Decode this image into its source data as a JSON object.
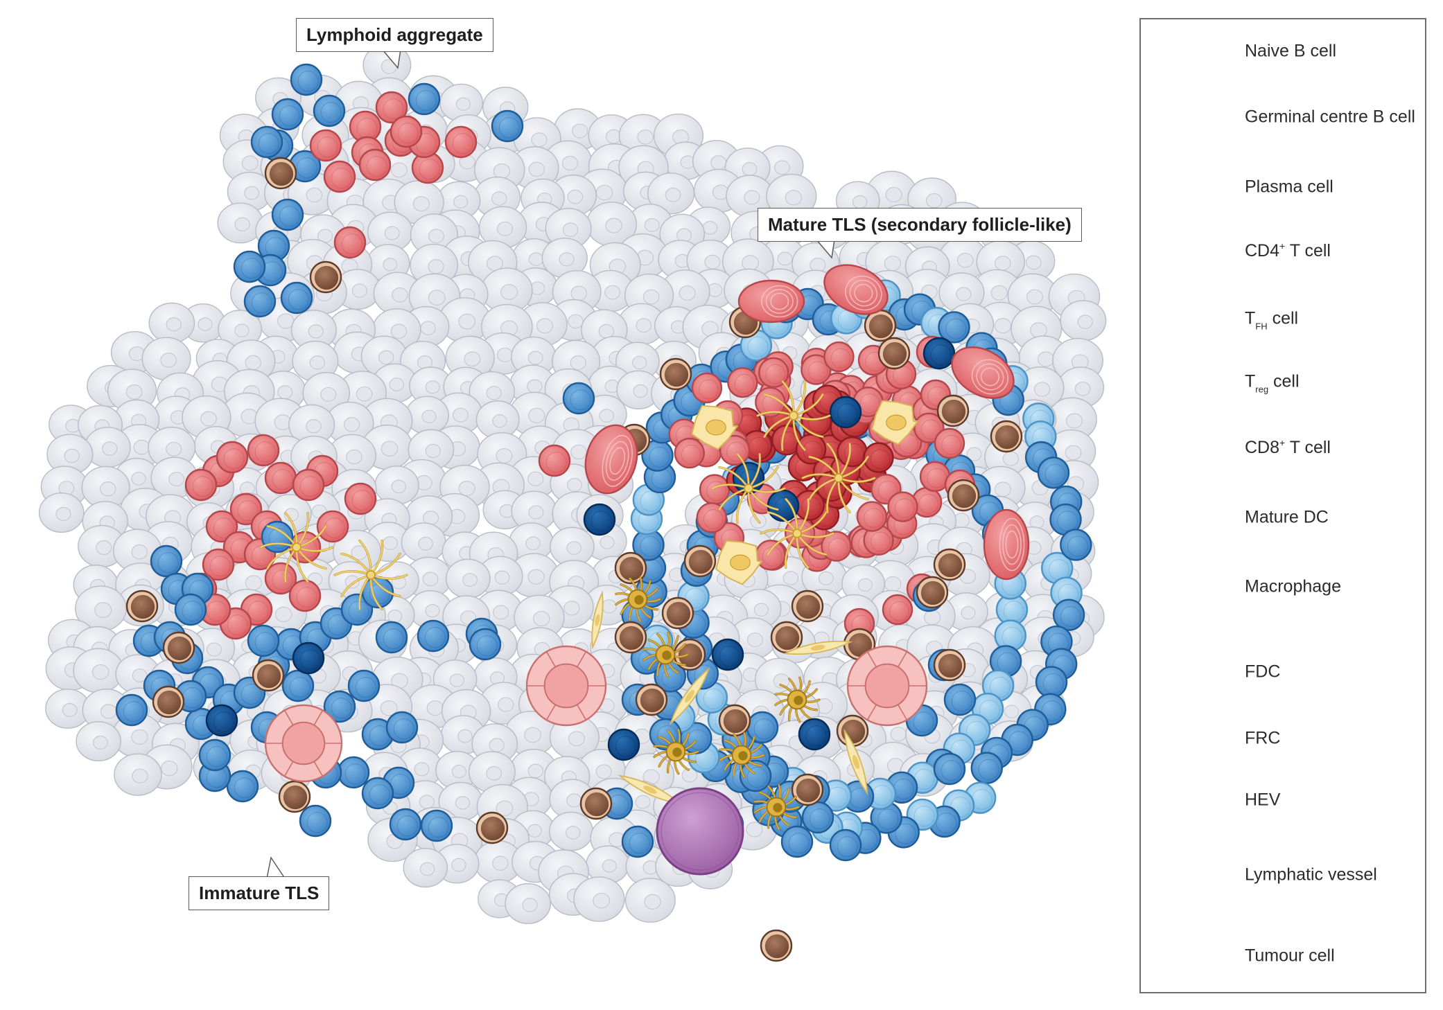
{
  "callouts": {
    "lymphoid_aggregate": "Lymphoid aggregate",
    "mature_tls": "Mature TLS (secondary follicle-like)",
    "immature_tls": "Immature TLS"
  },
  "legend": [
    {
      "key": "naive_b",
      "text": "Naive B cell",
      "icon": "naive-b-cell-icon"
    },
    {
      "key": "gc_b",
      "text": "Germinal centre B cell",
      "icon": "germinal-centre-b-cell-icon"
    },
    {
      "key": "plasma",
      "text": "Plasma cell",
      "icon": "plasma-cell-icon"
    },
    {
      "key": "cd4",
      "text_main": "CD4",
      "text_sup": "+",
      "text_rest": " T cell",
      "icon": "cd4-t-cell-icon"
    },
    {
      "key": "tfh",
      "text_main": "T",
      "text_sub": "FH",
      "text_rest": " cell",
      "icon": "tfh-cell-icon"
    },
    {
      "key": "treg",
      "text_main": "T",
      "text_sub": "reg",
      "text_rest": " cell",
      "icon": "treg-cell-icon"
    },
    {
      "key": "cd8",
      "text_main": "CD8",
      "text_sup": "+",
      "text_rest": " T cell",
      "icon": "cd8-t-cell-icon"
    },
    {
      "key": "mature_dc",
      "text": "Mature DC",
      "icon": "mature-dc-icon"
    },
    {
      "key": "macrophage",
      "text": "Macrophage",
      "icon": "macrophage-icon"
    },
    {
      "key": "fdc",
      "text": "FDC",
      "icon": "fdc-icon"
    },
    {
      "key": "frc",
      "text": "FRC",
      "icon": "frc-icon"
    },
    {
      "key": "hev",
      "text": "HEV",
      "icon": "hev-icon"
    },
    {
      "key": "lymphatic",
      "text": "Lymphatic vessel",
      "icon": "lymphatic-vessel-icon"
    },
    {
      "key": "tumour",
      "text": "Tumour cell",
      "icon": "tumour-cell-icon"
    }
  ],
  "colors": {
    "naive_b": "#e8767a",
    "gc_b": "#cf3a3e",
    "plasma": "#e8767a",
    "cd4": "#4a90cf",
    "tfh": "#8cc6ea",
    "treg": "#0d4f93",
    "cd8": "#8a5a42",
    "dc": "#d9ab35",
    "macrophage": "#f6dc93",
    "fdc": "#e2bd55",
    "frc": "#f2dd98",
    "hev": "#f2a9a6",
    "lymphatic": "#b27ab8",
    "tumour": "#dfe2e8"
  }
}
